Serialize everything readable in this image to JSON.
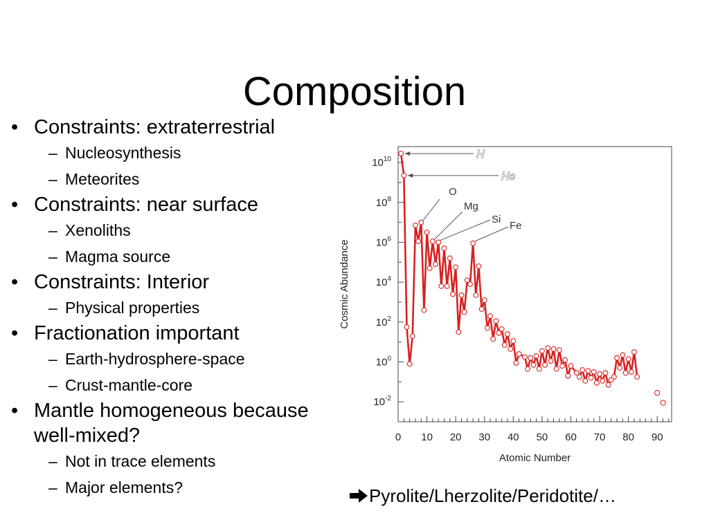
{
  "slide": {
    "title": "Composition",
    "bullets": [
      {
        "text": "Constraints: extraterrestrial",
        "sub": [
          "Nucleosynthesis",
          "Meteorites"
        ]
      },
      {
        "text": "Constraints: near surface",
        "sub": [
          "Xenoliths",
          "Magma source"
        ]
      },
      {
        "text": "Constraints: Interior",
        "sub": [
          "Physical properties"
        ]
      },
      {
        "text": "Fractionation important",
        "sub": [
          "Earth-hydrosphere-space",
          "Crust-mantle-core"
        ]
      },
      {
        "text": "Mantle homogeneous because well-mixed?",
        "sub": [
          "Not in trace elements",
          "Major elements?"
        ]
      }
    ],
    "bullet_marker": "•",
    "sub_marker": "–",
    "footer": "Pyrolite/Lherzolite/Peridotite/…",
    "footer_icon": "right-arrow-icon"
  },
  "chart_data": {
    "type": "line",
    "xlabel": "Atomic Number",
    "ylabel": "Cosmic Abundance",
    "xlim": [
      0,
      95
    ],
    "ylim_log10": [
      -3,
      10.8
    ],
    "y_scale": "log",
    "x_ticks": [
      0,
      10,
      20,
      30,
      40,
      50,
      60,
      70,
      80,
      90
    ],
    "y_ticks_exp": [
      10,
      8,
      6,
      4,
      2,
      0,
      -2
    ],
    "tick_base": "10",
    "color": "#d92020",
    "series": [
      {
        "x": [
          1,
          2,
          3,
          4,
          5,
          6,
          7,
          8,
          9,
          10,
          11,
          12,
          13,
          14,
          15,
          16,
          17,
          18,
          19,
          20,
          21,
          22,
          23,
          24,
          25,
          26,
          27,
          28,
          29,
          30,
          31,
          32,
          33,
          34,
          35,
          36,
          37,
          38,
          39,
          40,
          41,
          42,
          44,
          45,
          46,
          47,
          48,
          49,
          50,
          51,
          52,
          53,
          54,
          55,
          56,
          57,
          58,
          59,
          60,
          62,
          63,
          64,
          65,
          66,
          67,
          68,
          69,
          70,
          71,
          72,
          73,
          74,
          75,
          76,
          77,
          78,
          79,
          80,
          81,
          82,
          83
        ],
        "log10_values": [
          10.45,
          9.35,
          1.75,
          -0.1,
          1.3,
          6.85,
          6.05,
          7.0,
          2.6,
          6.5,
          4.7,
          6.05,
          4.9,
          6.0,
          3.8,
          5.7,
          3.8,
          5.2,
          3.4,
          4.75,
          1.5,
          3.35,
          2.5,
          4.1,
          3.9,
          5.95,
          3.35,
          4.8,
          2.65,
          3.1,
          1.7,
          2.3,
          1.15,
          2.05,
          1.45,
          1.65,
          0.85,
          1.4,
          0.65,
          1.05,
          -0.05,
          0.4,
          0.25,
          -0.35,
          0.2,
          -0.15,
          0.3,
          -0.35,
          0.55,
          -0.15,
          0.7,
          0.05,
          0.65,
          -0.35,
          0.6,
          -0.2,
          0.1,
          -0.7,
          -0.2,
          -0.55,
          -0.75,
          -0.4,
          -0.95,
          -0.45,
          -0.8,
          -0.5,
          -1.05,
          -0.6,
          -0.95,
          -0.55,
          -1.15,
          -0.9,
          -0.75,
          0.2,
          -0.3,
          0.35,
          -0.55,
          0.15,
          -0.5,
          0.5,
          -0.75
        ],
        "isolated_x": [
          90,
          92
        ],
        "isolated_log10_values": [
          -1.55,
          -2.05
        ]
      }
    ],
    "annotations": [
      {
        "text": "H",
        "x": 1,
        "log10": 10.45,
        "style": "outlined"
      },
      {
        "text": "He",
        "x": 2,
        "log10": 9.35,
        "style": "outlined"
      },
      {
        "text": "O",
        "x": 8,
        "log10": 7.0,
        "style": "plain"
      },
      {
        "text": "Mg",
        "x": 12,
        "log10": 6.05,
        "style": "plain"
      },
      {
        "text": "Si",
        "x": 14,
        "log10": 6.0,
        "style": "plain"
      },
      {
        "text": "Fe",
        "x": 26,
        "log10": 5.95,
        "style": "plain"
      }
    ]
  }
}
